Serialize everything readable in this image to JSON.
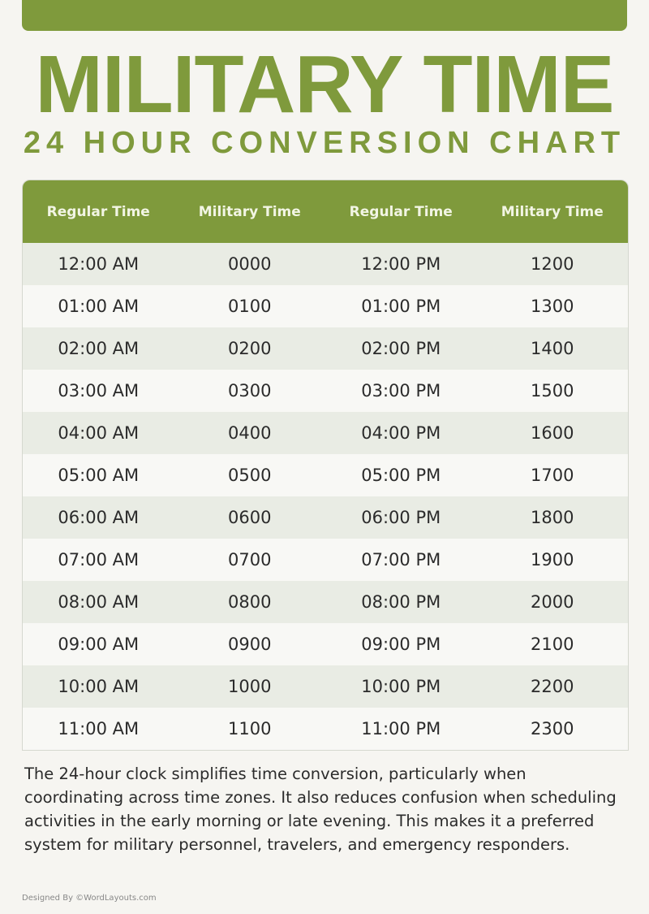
{
  "colors": {
    "accent": "#7f9a3c",
    "row_alt": "#e9ece4",
    "row": "#f8f8f5"
  },
  "title": "MILITARY TIME",
  "subtitle": "24 HOUR CONVERSION CHART",
  "table": {
    "headers": [
      "Regular Time",
      "Military Time",
      "Regular Time",
      "Military Time"
    ],
    "rows": [
      [
        "12:00 AM",
        "0000",
        "12:00 PM",
        "1200"
      ],
      [
        "01:00 AM",
        "0100",
        "01:00 PM",
        "1300"
      ],
      [
        "02:00 AM",
        "0200",
        "02:00 PM",
        "1400"
      ],
      [
        "03:00 AM",
        "0300",
        "03:00 PM",
        "1500"
      ],
      [
        "04:00 AM",
        "0400",
        "04:00 PM",
        "1600"
      ],
      [
        "05:00 AM",
        "0500",
        "05:00 PM",
        "1700"
      ],
      [
        "06:00 AM",
        "0600",
        "06:00 PM",
        "1800"
      ],
      [
        "07:00 AM",
        "0700",
        "07:00 PM",
        "1900"
      ],
      [
        "08:00 AM",
        "0800",
        "08:00 PM",
        "2000"
      ],
      [
        "09:00 AM",
        "0900",
        "09:00 PM",
        "2100"
      ],
      [
        "10:00 AM",
        "1000",
        "10:00 PM",
        "2200"
      ],
      [
        "11:00 AM",
        "1100",
        "11:00 PM",
        "2300"
      ]
    ]
  },
  "description": "The 24-hour clock simplifies time conversion, particularly when coordinating across time zones. It also reduces confusion when scheduling activities in the early morning or late evening. This makes it a preferred system for military personnel, travelers, and emergency responders.",
  "credit": "Designed By ©WordLayouts.com"
}
